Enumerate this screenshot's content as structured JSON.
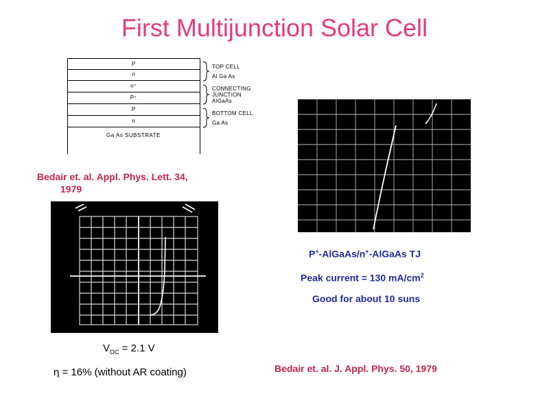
{
  "title": "First Multijunction Solar Cell",
  "diagram": {
    "layers": [
      "P",
      "n",
      "n⁺",
      "P⁺",
      "P",
      "n"
    ],
    "substrate": "Ga As   SUBSTRATE",
    "groups": [
      {
        "name": "TOP CELL",
        "material": "Al Ga As"
      },
      {
        "name": "CONNECTING JUNCTION",
        "name_lines": [
          "CONNECTING",
          "JUNCTION"
        ],
        "material": "AlGaAs"
      },
      {
        "name": "BOTTOM CELL",
        "material": "Ga As"
      }
    ]
  },
  "ref1": {
    "line1": "Bedair et. al. Appl. Phys. Lett. 34,",
    "line2": "1979"
  },
  "ref2": "Bedair et. al. J. Appl. Phys. 50, 1979",
  "tj": {
    "prefix": "P",
    "plus1": "+",
    "middle": "-AlGaAs/n",
    "plus2": "+",
    "suffix": "-AlGaAs TJ"
  },
  "peak": {
    "label": "Peak current =  130 mA/cm",
    "exp": "2"
  },
  "good_for": "Good for about 10 suns",
  "voc": {
    "symbol": "V",
    "sub": "OC",
    "value": " = 2.1 V"
  },
  "efficiency": "η = 16% (without AR coating)",
  "colors": {
    "title": "#e23b7d",
    "reference": "#c0234b",
    "info": "#1f2a9c"
  }
}
